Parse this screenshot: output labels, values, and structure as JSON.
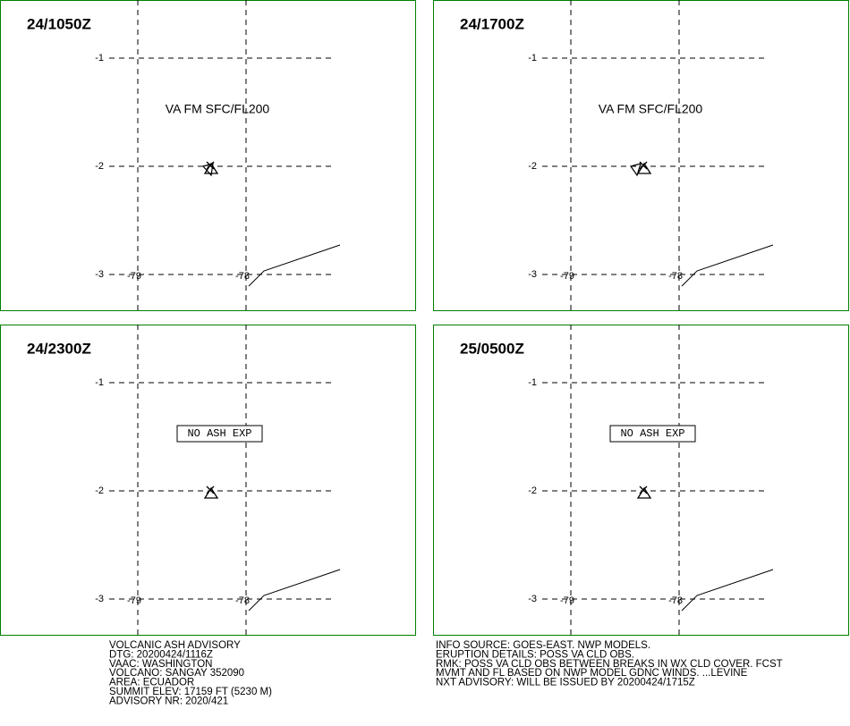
{
  "grid": {
    "lat_labels": [
      "-1",
      "-2",
      "-3"
    ],
    "lon_labels": [
      "-79",
      "-78"
    ]
  },
  "panels": [
    {
      "time": "24/1050Z",
      "annotation": {
        "text": "VA FM SFC/FL200",
        "boxed": false
      }
    },
    {
      "time": "24/1700Z",
      "annotation": {
        "text": "VA FM SFC/FL200",
        "boxed": false
      }
    },
    {
      "time": "24/2300Z",
      "annotation": {
        "text": "NO ASH EXP",
        "boxed": true
      }
    },
    {
      "time": "25/0500Z",
      "annotation": {
        "text": "NO ASH EXP",
        "boxed": true
      }
    }
  ],
  "footer": {
    "left": [
      "VOLCANIC ASH ADVISORY",
      "DTG: 20200424/1116Z",
      "VAAC: WASHINGTON",
      "VOLCANO: SANGAY 352090",
      "AREA: ECUADOR",
      "SUMMIT ELEV: 17159 FT (5230 M)",
      "ADVISORY NR: 2020/421"
    ],
    "right": [
      "INFO SOURCE: GOES-EAST. NWP MODELS.",
      "ERUPTION DETAILS: POSS VA CLD OBS.",
      "RMK: POSS VA CLD OBS BETWEEN BREAKS IN WX CLD COVER. FCST",
      "MVMT AND FL BASED ON NWP MODEL GDNC WINDS. ...LEVINE",
      "NXT ADVISORY: WILL BE ISSUED BY 20200424/1715Z"
    ]
  }
}
